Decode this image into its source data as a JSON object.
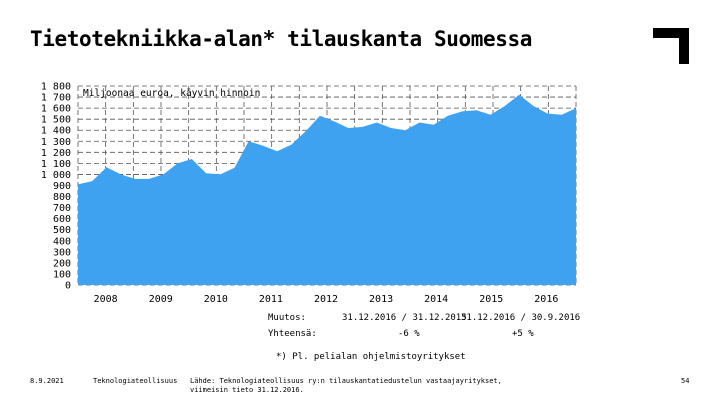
{
  "page": {
    "title": "Tietotekniikka-alan* tilauskanta Suomessa",
    "footnote": "*) Pl. peli­alan ohjelmistoyritykset",
    "footer": {
      "date": "8.9.2021",
      "org": "Teknologiateollisuus",
      "source_line1": "Lähde: Teknologiateollisuus ry:n tilauskantatiedustelun vastaajayritykset,",
      "source_line2": "viimeisin tieto 31.12.2016.",
      "page_number": "54"
    }
  },
  "change_table": {
    "label_row1": "Muutos:",
    "label_row2": "Yhteensä:",
    "period1": "31.12.2016 / 31.12.2015",
    "period2": "31.12.2016 / 30.9.2016",
    "value1": "-6 %",
    "value2": "+5 %"
  },
  "chart_data": {
    "type": "area",
    "title": "",
    "annotation": "Miljoonaa euroa, käyvin hinnoin",
    "xlabel": "",
    "ylabel": "",
    "ylim": [
      0,
      1800
    ],
    "yticks": [
      0,
      100,
      200,
      300,
      400,
      500,
      600,
      700,
      800,
      900,
      1000,
      1100,
      1200,
      1300,
      1400,
      1500,
      1600,
      1700,
      1800
    ],
    "ytick_labels": [
      "0",
      "100",
      "200",
      "300",
      "400",
      "500",
      "600",
      "700",
      "800",
      "900",
      "1 000",
      "1 100",
      "1 200",
      "1 300",
      "1 400",
      "1 500",
      "1 600",
      "1 700",
      "1 800"
    ],
    "x_labels": [
      "2008",
      "2009",
      "2010",
      "2011",
      "2012",
      "2013",
      "2014",
      "2015",
      "2016"
    ],
    "grid": true,
    "fill_color": "#3fa2f0",
    "series": [
      {
        "values": [
          910,
          940,
          1065,
          1000,
          960,
          960,
          1000,
          1100,
          1140,
          1010,
          1000,
          1060,
          1300,
          1260,
          1210,
          1270,
          1390,
          1530,
          1480,
          1420,
          1430,
          1470,
          1420,
          1400,
          1470,
          1450,
          1530,
          1570,
          1580,
          1540,
          1620,
          1720,
          1620,
          1550,
          1540,
          1600
        ]
      }
    ]
  }
}
